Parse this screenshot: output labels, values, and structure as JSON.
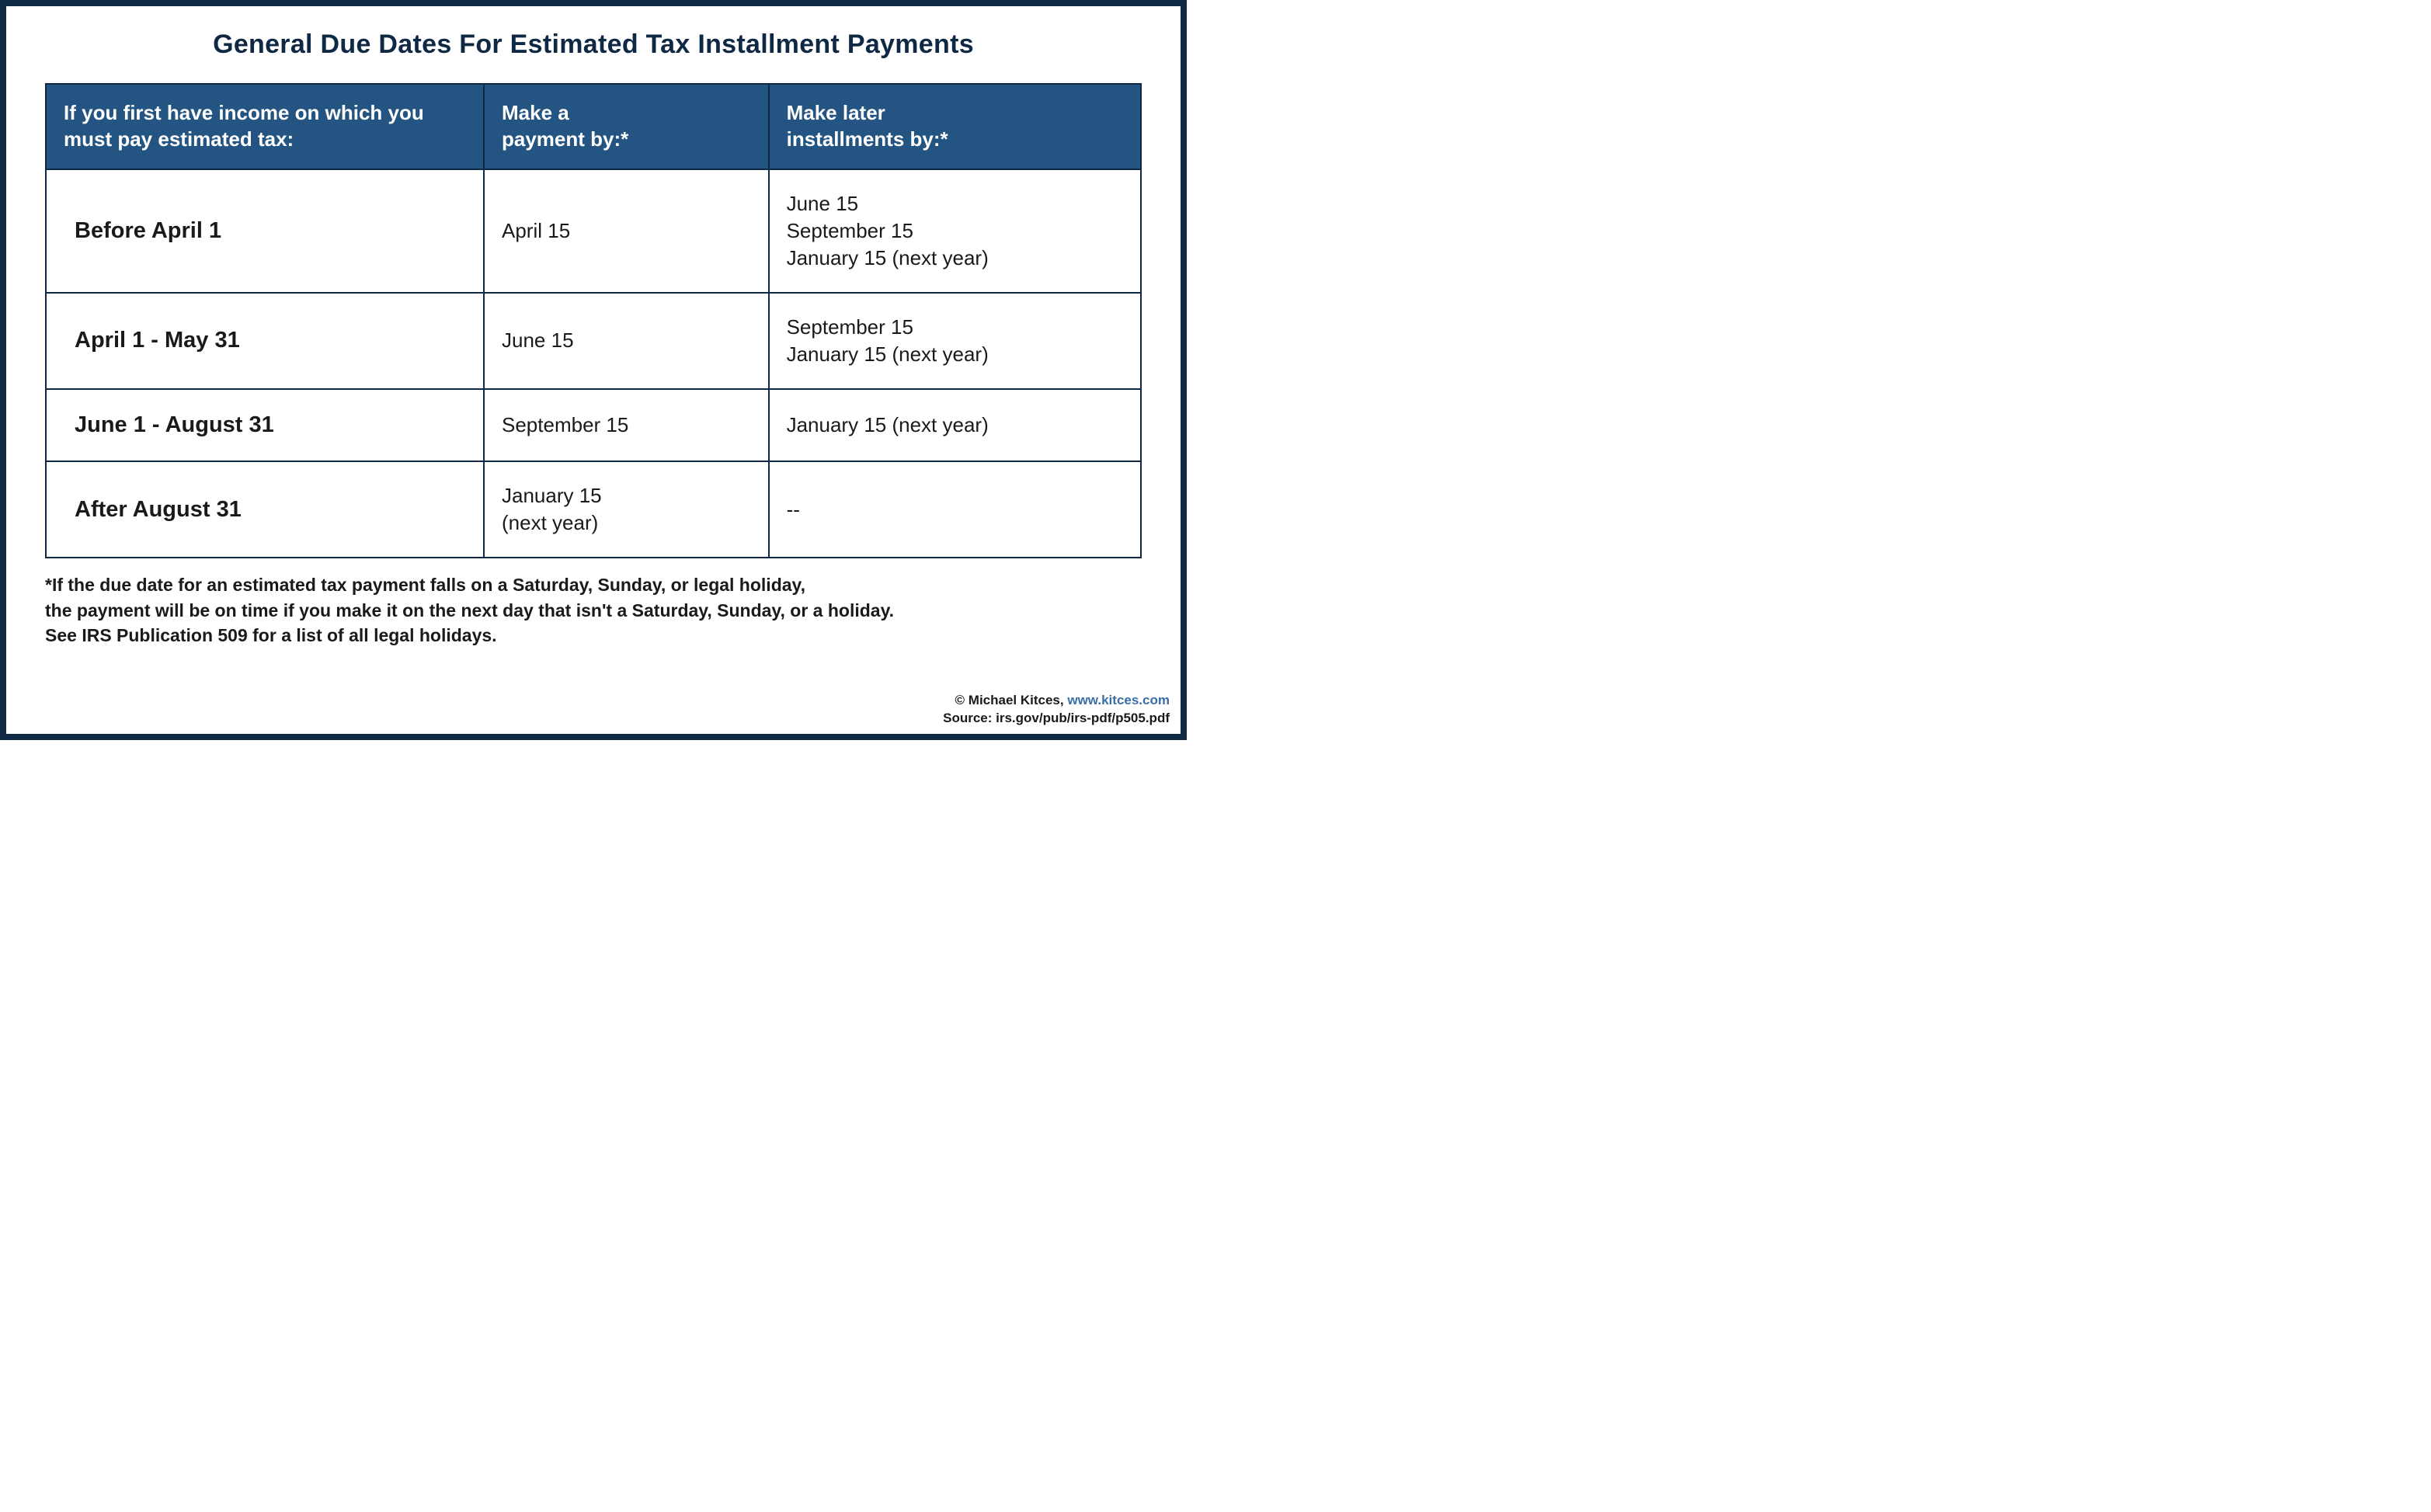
{
  "title": "General Due Dates For Estimated Tax Installment Payments",
  "table": {
    "headers": [
      "If you first have income on which you must pay estimated tax:",
      "Make a\npayment by:*",
      "Make later\ninstallments by:*"
    ],
    "rows": [
      {
        "period": "Before April 1",
        "payment": "April 15",
        "later": "June 15\nSeptember 15\nJanuary 15 (next year)"
      },
      {
        "period": "April 1 - May 31",
        "payment": "June 15",
        "later": "September 15\nJanuary 15 (next year)"
      },
      {
        "period": "June 1 - August 31",
        "payment": "September 15",
        "later": "January 15 (next year)"
      },
      {
        "period": "After August 31",
        "payment": "January 15\n(next year)",
        "later": "--"
      }
    ]
  },
  "footnote": "*If the due date for an estimated tax payment falls on a Saturday, Sunday, or legal holiday,\nthe payment will be on time if you make it on the next day that isn't a Saturday, Sunday, or a holiday.\nSee IRS Publication 509 for a list of all legal holidays.",
  "credits": {
    "author": "© Michael Kitces, ",
    "site": "www.kitces.com",
    "source": "Source: irs.gov/pub/irs-pdf/p505.pdf"
  },
  "styling": {
    "border_color": "#0f2945",
    "header_bg": "#235482",
    "header_text": "#ffffff",
    "body_text": "#1a1a1a",
    "link_color": "#3a6ea5",
    "background": "#ffffff",
    "title_fontsize": 34,
    "th_fontsize": 26,
    "td_fontsize": 26,
    "td_first_fontsize": 29,
    "footnote_fontsize": 23,
    "credits_fontsize": 17,
    "border_outer_width": 8,
    "cell_border_width": 2,
    "column_widths_pct": [
      40,
      26,
      34
    ]
  }
}
